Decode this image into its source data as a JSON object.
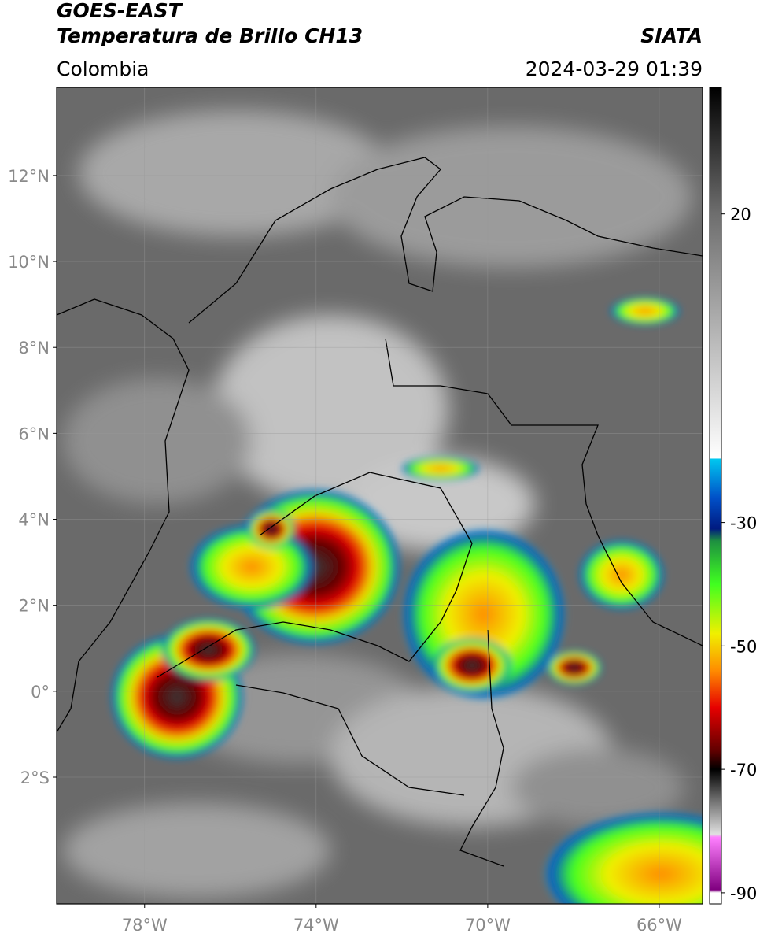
{
  "header": {
    "title": "GOES-EAST",
    "subtitle": "Temperatura de Brillo CH13",
    "source": "SIATA",
    "region": "Colombia",
    "datetime": "2024-03-29 01:39"
  },
  "map": {
    "xlim": [
      -80.05,
      -64.99
    ],
    "ylim": [
      -4.95,
      14.05
    ],
    "xticks": [
      {
        "value": -78,
        "label": "78°W"
      },
      {
        "value": -74,
        "label": "74°W"
      },
      {
        "value": -70,
        "label": "70°W"
      },
      {
        "value": -66,
        "label": "66°W"
      }
    ],
    "yticks": [
      {
        "value": 12,
        "label": "12°N"
      },
      {
        "value": 10,
        "label": "10°N"
      },
      {
        "value": 8,
        "label": "8°N"
      },
      {
        "value": 6,
        "label": "6°N"
      },
      {
        "value": 4,
        "label": "4°N"
      },
      {
        "value": 2,
        "label": "2°N"
      },
      {
        "value": 0,
        "label": "0°"
      },
      {
        "value": -2,
        "label": "2°S"
      }
    ],
    "grid": true
  },
  "colorbar": {
    "clim": [
      -91.8,
      40.5
    ],
    "ticks": [
      20,
      -30,
      -50,
      -70,
      -90
    ],
    "colormap": [
      {
        "value": 40.5,
        "color": "#000000"
      },
      {
        "value": 20,
        "color": "#6e6e6e"
      },
      {
        "value": -19.6,
        "color": "#ffffff"
      },
      {
        "value": -19.7,
        "color": "#00c8f0"
      },
      {
        "value": -26,
        "color": "#0050c8"
      },
      {
        "value": -31,
        "color": "#001a80"
      },
      {
        "value": -33,
        "color": "#1e9040"
      },
      {
        "value": -40,
        "color": "#40ff20"
      },
      {
        "value": -48,
        "color": "#f0f000"
      },
      {
        "value": -54,
        "color": "#ff8c00"
      },
      {
        "value": -60,
        "color": "#e60000"
      },
      {
        "value": -67,
        "color": "#600000"
      },
      {
        "value": -70,
        "color": "#000000"
      },
      {
        "value": -75,
        "color": "#707070"
      },
      {
        "value": -80.5,
        "color": "#e0e0e0"
      },
      {
        "value": -81,
        "color": "#ff80ff"
      },
      {
        "value": -89.5,
        "color": "#800080"
      },
      {
        "value": -90,
        "color": "#ffffff"
      }
    ]
  }
}
